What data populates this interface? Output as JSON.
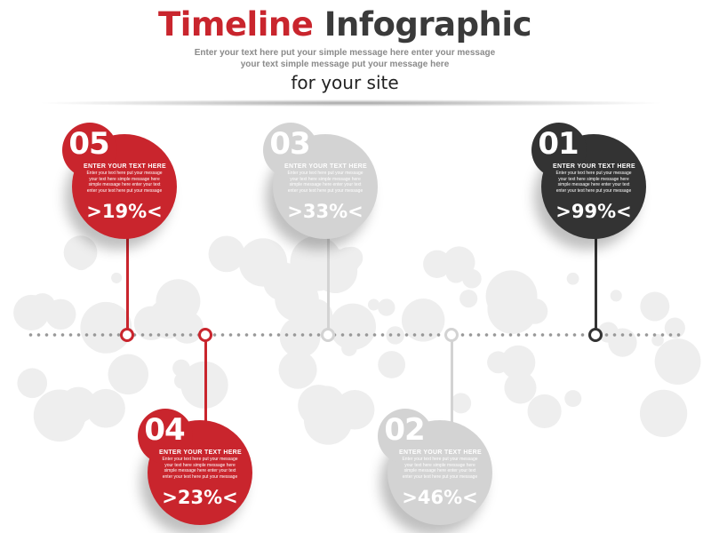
{
  "header": {
    "title_part1": "Timeline",
    "title_part2": "Infographic",
    "subtitle_line1": "Enter your text here put your simple message here enter your message",
    "subtitle_line2": "your text simple message put your message here",
    "tagline": "for your site"
  },
  "colors": {
    "red": "#c9252d",
    "gray": "#d3d3d3",
    "dark": "#333333",
    "bubble": "#eeeeee"
  },
  "steps": [
    {
      "number": "05",
      "heading": "ENTER YOUR TEXT HERE",
      "body": "Enter your text here put your message your text here simple message here simple message here enter your text enter your text here put your message",
      "percent": ">19%<",
      "color": "red",
      "position": "above"
    },
    {
      "number": "04",
      "heading": "ENTER YOUR TEXT HERE",
      "body": "Enter your text here put your message your text here simple message here simple message here enter your text enter your text here put your message",
      "percent": ">23%<",
      "color": "red",
      "position": "below"
    },
    {
      "number": "03",
      "heading": "ENTER YOUR TEXT HERE",
      "body": "Enter your text here put your message your text here simple message here simple message here enter your text enter your text here put your message",
      "percent": ">33%<",
      "color": "gray",
      "position": "above"
    },
    {
      "number": "02",
      "heading": "ENTER YOUR TEXT HERE",
      "body": "Enter your text here put your message your text here simple message here simple message here enter your text enter your text here put your message",
      "percent": ">46%<",
      "color": "gray",
      "position": "below"
    },
    {
      "number": "01",
      "heading": "ENTER YOUR TEXT HERE",
      "body": "Enter your text here put your message your text here simple message here simple message here enter your text enter your text here put your message",
      "percent": ">99%<",
      "color": "dark",
      "position": "above"
    }
  ]
}
